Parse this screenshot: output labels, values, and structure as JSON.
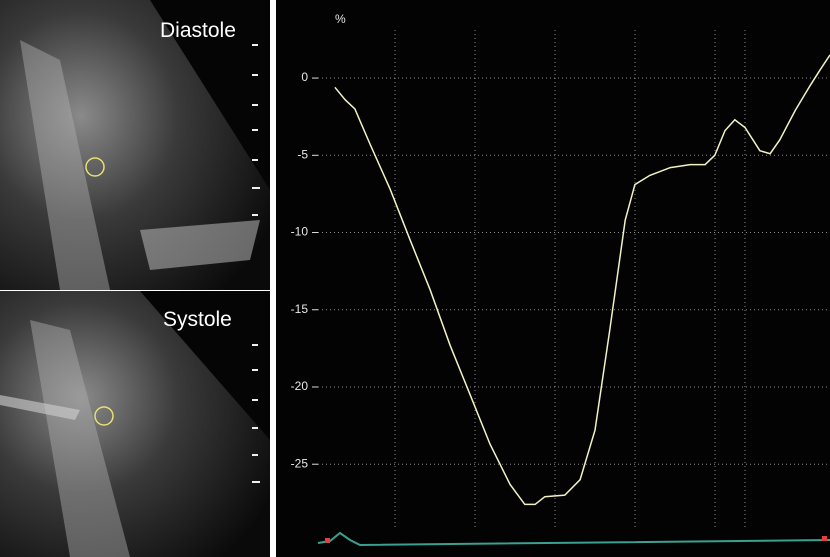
{
  "images": [
    {
      "label": "Diastole"
    },
    {
      "label": "Systole"
    }
  ],
  "chart_data": {
    "type": "line",
    "y_label": "%",
    "x": [
      3.3,
      5.3,
      7.2,
      10.2,
      14.1,
      18,
      21.9,
      25.8,
      29.7,
      33.6,
      37.5,
      40.4,
      42.4,
      44.3,
      48.2,
      51.2,
      54.1,
      57,
      60,
      61.9,
      64.8,
      68.8,
      72.7,
      75.6,
      77.5,
      79.5,
      81.4,
      83.4,
      86.3,
      88.3,
      90.2,
      93.2,
      96.1,
      98,
      100
    ],
    "series": [
      {
        "color": "#f2f2c4",
        "values": [
          -0.6,
          -1.4,
          -2,
          -4.3,
          -7.2,
          -10.5,
          -13.7,
          -17.3,
          -20.5,
          -23.7,
          -26.3,
          -27.6,
          -27.6,
          -27.1,
          -27,
          -26,
          -22.8,
          -16.3,
          -9.2,
          -6.9,
          -6.3,
          -5.8,
          -5.6,
          -5.6,
          -5,
          -3.4,
          -2.7,
          -3.2,
          -4.7,
          -4.9,
          -4,
          -2.1,
          -0.5,
          0.5,
          1.5
        ]
      }
    ],
    "xlim": [
      0,
      100
    ],
    "ylim": [
      -29,
      3.5
    ],
    "yticks": [
      0,
      -5,
      -10,
      -15,
      -20,
      -25
    ],
    "grid": true
  }
}
